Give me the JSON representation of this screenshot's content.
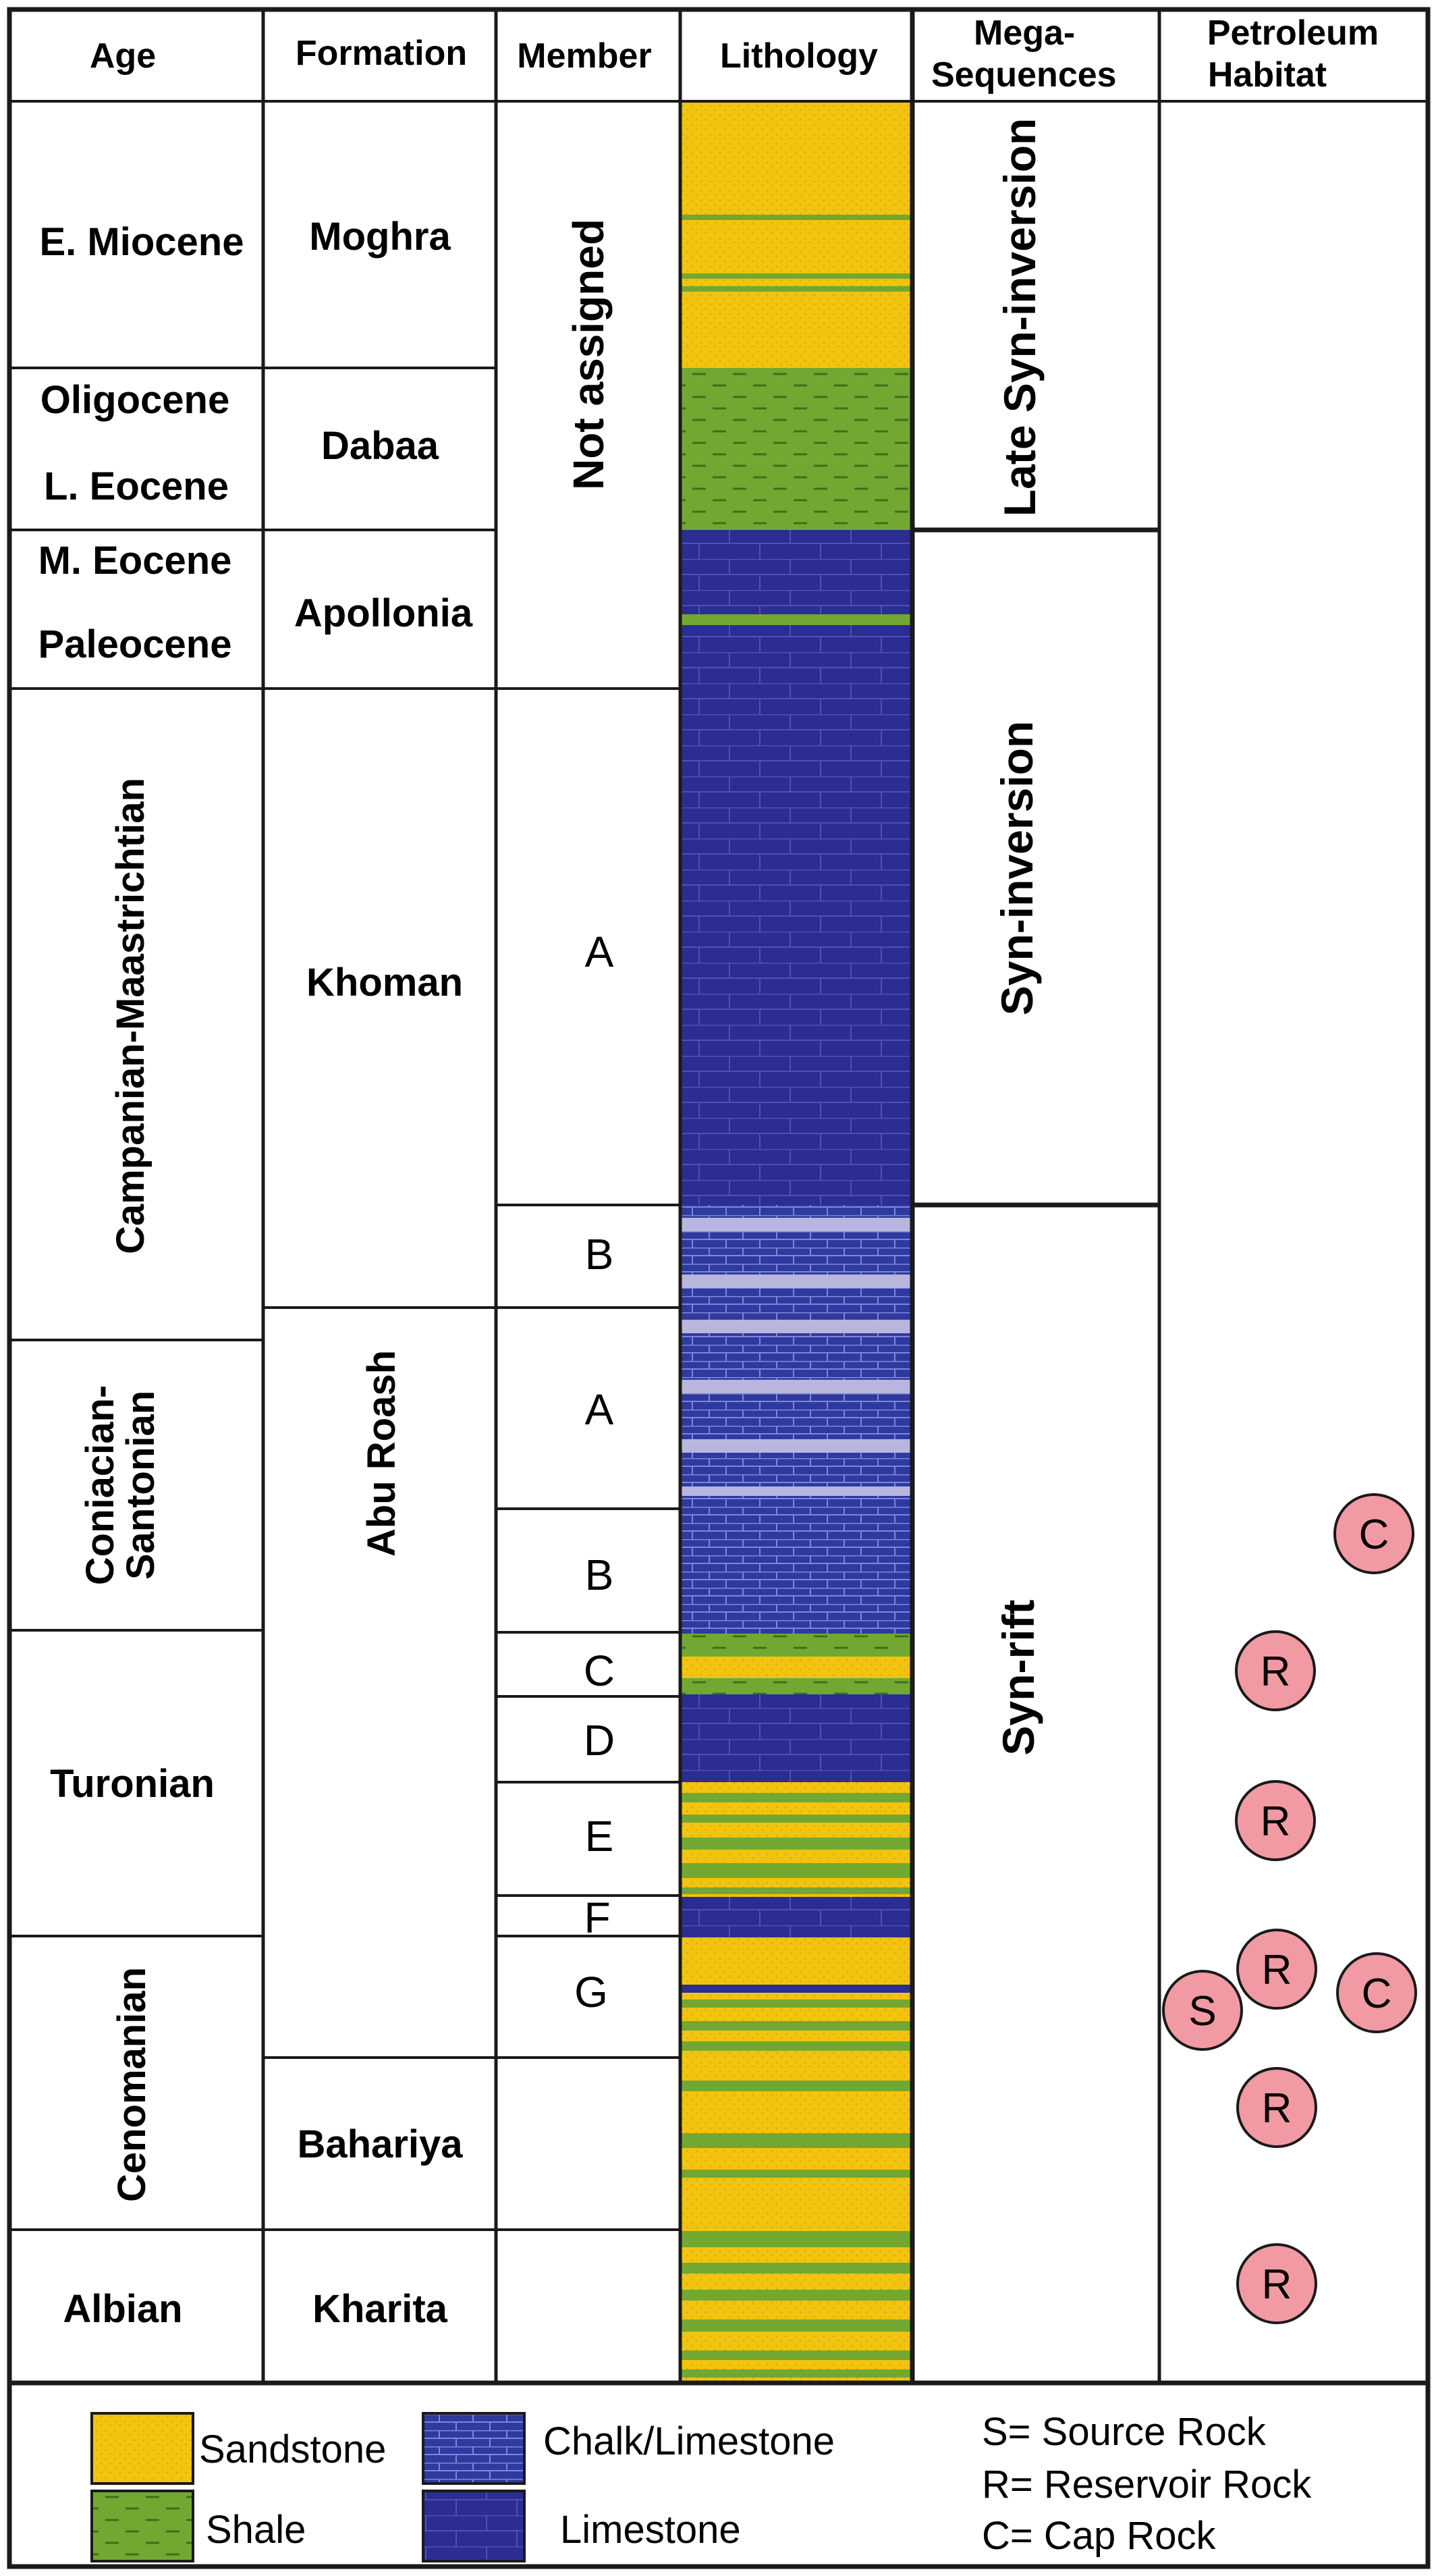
{
  "headers": {
    "age": "Age",
    "formation": "Formation",
    "member": "Member",
    "lithology": "Lithology",
    "mega_line1": "Mega-",
    "mega_line2": "Sequences",
    "petro_line1": "Petroleum",
    "petro_line2": "Habitat"
  },
  "ages": {
    "e_miocene": "E. Miocene",
    "oligocene": "Oligocene",
    "l_eocene": "L. Eocene",
    "m_eocene": "M. Eocene",
    "paleocene": "Paleocene",
    "campanian_maastrichtian": "Campanian-Maastrichtian",
    "coniacian": "Coniacian-",
    "santonian": "Santonian",
    "turonian": "Turonian",
    "cenomanian": "Cenomanian",
    "albian": "Albian"
  },
  "formations": {
    "moghra": "Moghra",
    "dabaa": "Dabaa",
    "apollonia": "Apollonia",
    "khoman": "Khoman",
    "abu_roash": "Abu Roash",
    "bahariya": "Bahariya",
    "kharita": "Kharita"
  },
  "members": {
    "not_assigned": "Not assigned",
    "khoman_a": "A",
    "khoman_b": "B",
    "ar_a": "A",
    "ar_b": "B",
    "ar_c": "C",
    "ar_d": "D",
    "ar_e": "E",
    "ar_f": "F",
    "ar_g": "G"
  },
  "mega_sequences": {
    "late_syn_inversion": "Late Syn-inversion",
    "syn_inversion": "Syn-inversion",
    "syn_rift": "Syn-rift"
  },
  "habitat_markers": {
    "c1": "C",
    "r1": "R",
    "r2": "R",
    "s1": "S",
    "r3": "R",
    "c2": "C",
    "r4": "R",
    "r5": "R"
  },
  "legend": {
    "sandstone": "Sandstone",
    "shale": "Shale",
    "chalk_limestone": "Chalk/Limestone",
    "limestone": "Limestone",
    "source_rock": "S= Source Rock",
    "reservoir_rock": "R= Reservoir Rock",
    "cap_rock": "C= Cap Rock"
  },
  "colors": {
    "sandstone": "#f2c40f",
    "shale": "#72a832",
    "limestone": "#2b2d92",
    "chalk": "#b8b6dc",
    "habitat_marker": "#f19aa3",
    "border": "#1a1a1a"
  }
}
